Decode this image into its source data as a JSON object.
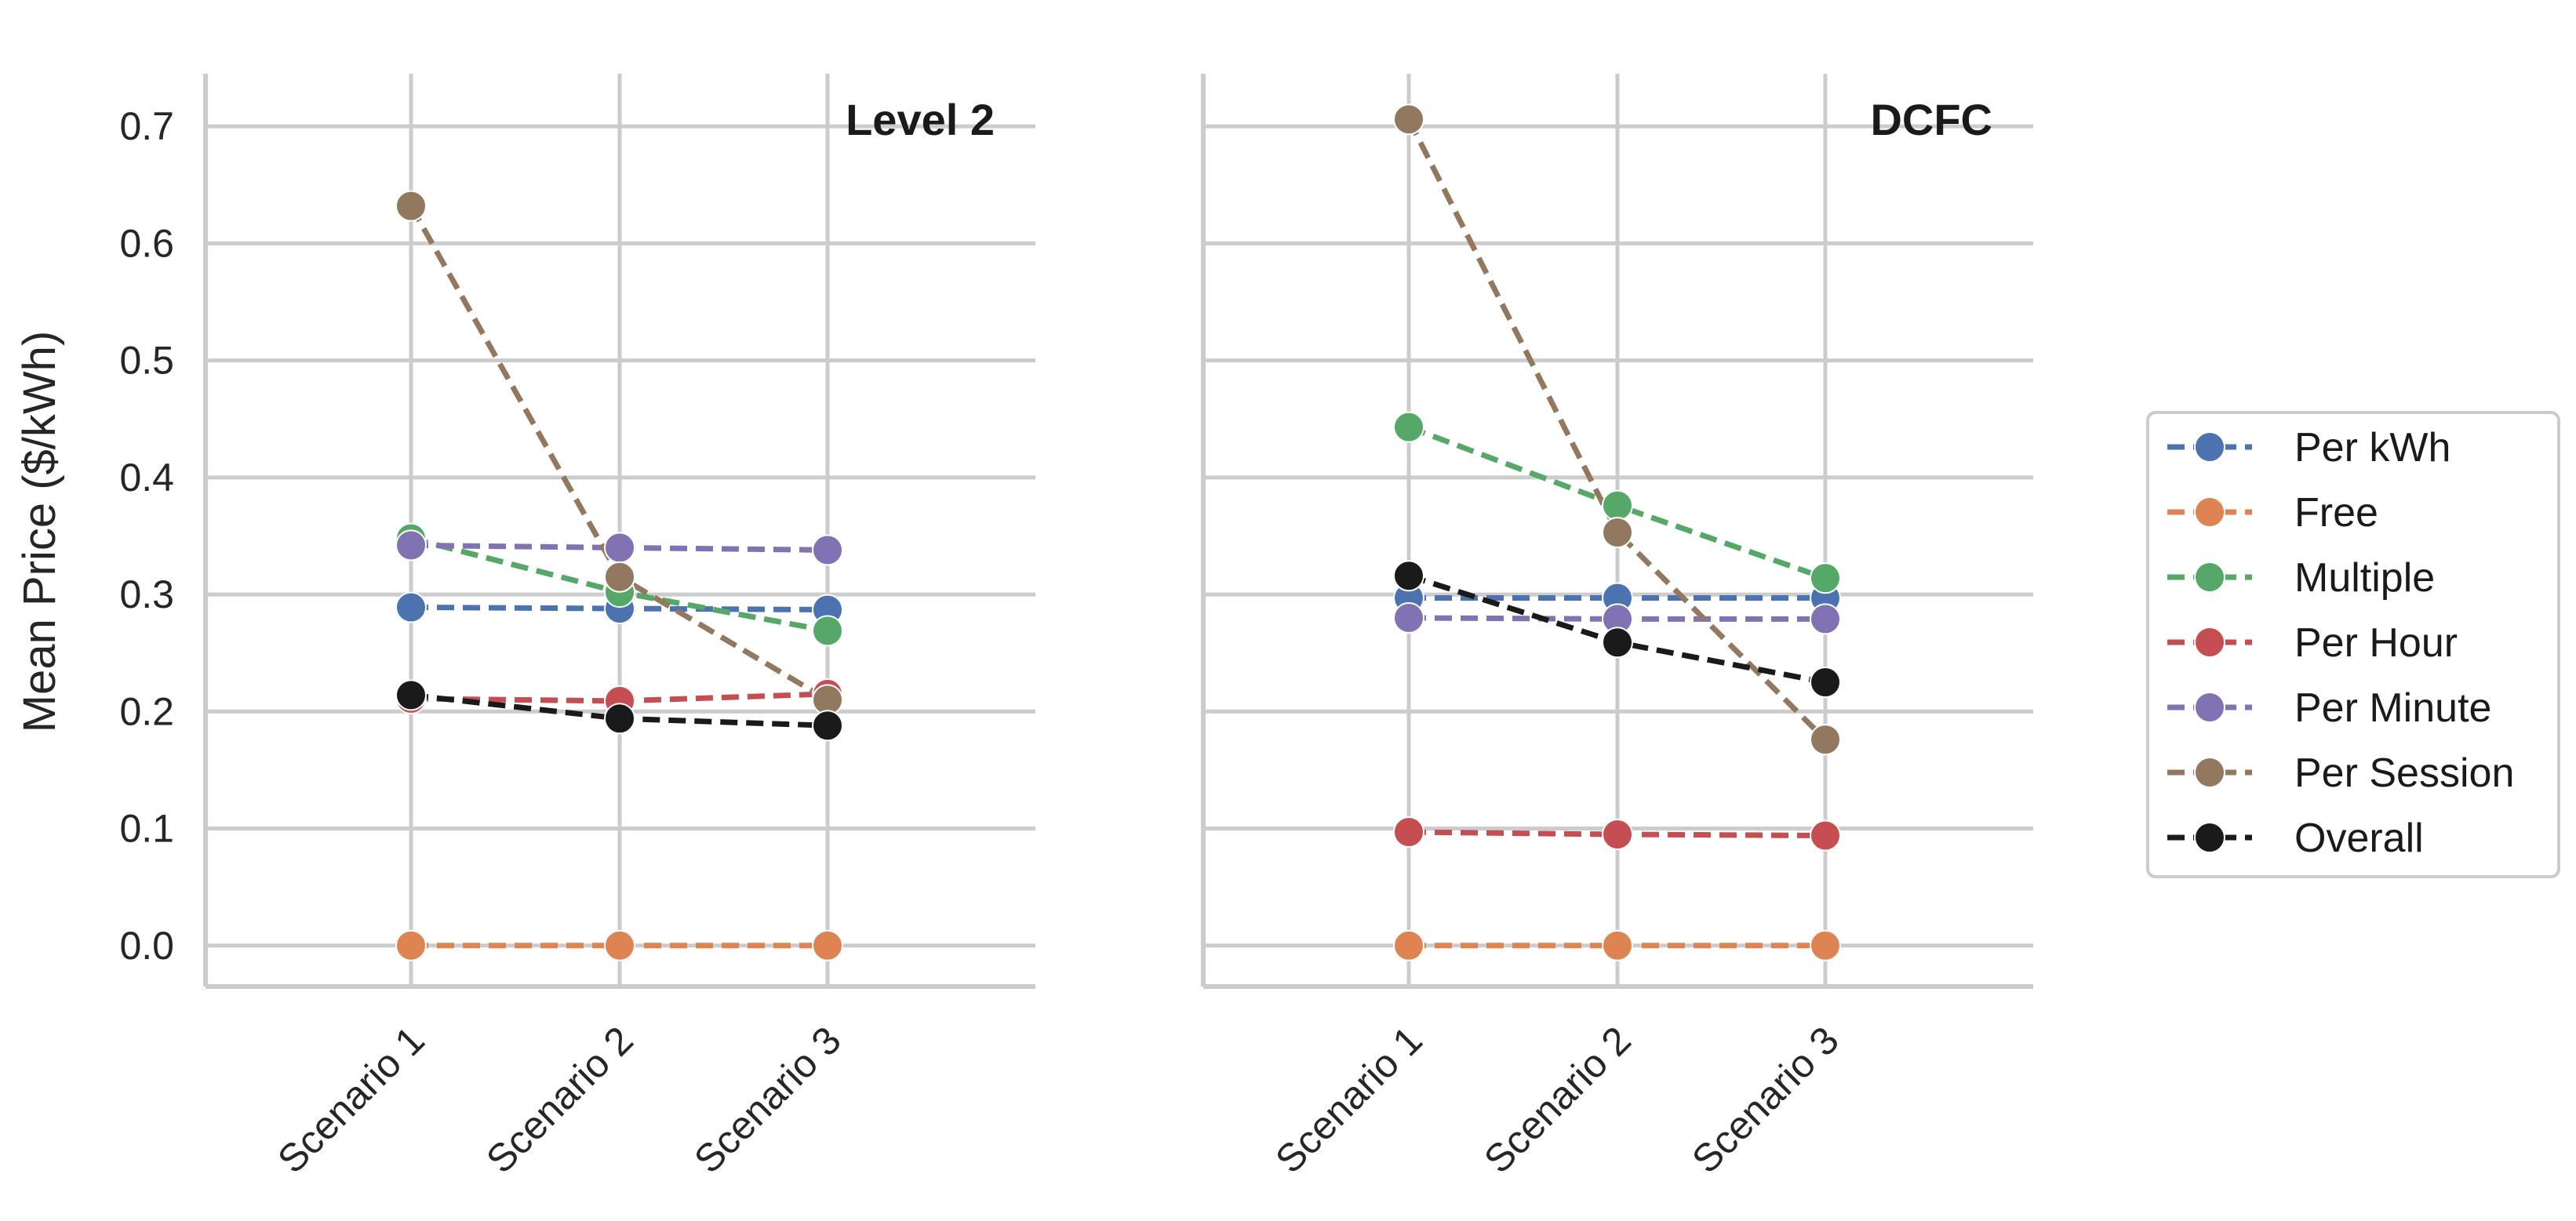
{
  "chart_data": {
    "type": "line",
    "ylabel": "Mean Price ($/kWh)",
    "ylim": [
      -0.035,
      0.745
    ],
    "yticks": [
      0.0,
      0.1,
      0.2,
      0.3,
      0.4,
      0.5,
      0.6,
      0.7
    ],
    "ytick_labels": [
      "0.0",
      "0.1",
      "0.2",
      "0.3",
      "0.4",
      "0.5",
      "0.6",
      "0.7"
    ],
    "categories": [
      "Scenario 1",
      "Scenario 2",
      "Scenario 3"
    ],
    "grid": true,
    "legend_position": "right",
    "series_meta": [
      {
        "name": "Per kWh",
        "color": "#4c72b0"
      },
      {
        "name": "Free",
        "color": "#dd8452"
      },
      {
        "name": "Multiple",
        "color": "#55a868"
      },
      {
        "name": "Per Hour",
        "color": "#c44e52"
      },
      {
        "name": "Per Minute",
        "color": "#8172b3"
      },
      {
        "name": "Per Session",
        "color": "#937860"
      },
      {
        "name": "Overall",
        "color": "#1a1a1a"
      }
    ],
    "panels": [
      {
        "title": "Level 2",
        "series": [
          {
            "name": "Per kWh",
            "values": [
              0.289,
              0.288,
              0.287
            ]
          },
          {
            "name": "Free",
            "values": [
              0.0,
              0.0,
              0.0
            ]
          },
          {
            "name": "Multiple",
            "values": [
              0.348,
              0.302,
              0.269
            ]
          },
          {
            "name": "Per Hour",
            "values": [
              0.211,
              0.209,
              0.215
            ]
          },
          {
            "name": "Per Minute",
            "values": [
              0.342,
              0.34,
              0.338
            ]
          },
          {
            "name": "Per Session",
            "values": [
              0.632,
              0.315,
              0.21
            ]
          },
          {
            "name": "Overall",
            "values": [
              0.214,
              0.194,
              0.188
            ]
          }
        ]
      },
      {
        "title": "DCFC",
        "series": [
          {
            "name": "Per kWh",
            "values": [
              0.297,
              0.297,
              0.297
            ]
          },
          {
            "name": "Free",
            "values": [
              0.0,
              0.0,
              0.0
            ]
          },
          {
            "name": "Multiple",
            "values": [
              0.443,
              0.376,
              0.314
            ]
          },
          {
            "name": "Per Hour",
            "values": [
              0.097,
              0.095,
              0.094
            ]
          },
          {
            "name": "Per Minute",
            "values": [
              0.28,
              0.279,
              0.279
            ]
          },
          {
            "name": "Per Session",
            "values": [
              0.706,
              0.353,
              0.176
            ]
          },
          {
            "name": "Overall",
            "values": [
              0.316,
              0.259,
              0.225
            ]
          }
        ]
      }
    ]
  }
}
